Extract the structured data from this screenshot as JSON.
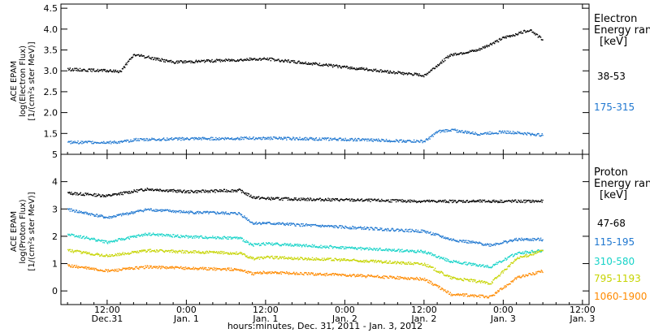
{
  "chart_data": [
    {
      "type": "scatter",
      "panel": "electron",
      "ylabel": [
        "ACE EPAM",
        "log(Electron Flux)",
        "[1/(cm²s ster MeV)]"
      ],
      "ylim": [
        1.0,
        4.6
      ],
      "yticks": [
        "1.5",
        "2.0",
        "2.5",
        "3.0",
        "3.5",
        "4.0",
        "4.5"
      ],
      "legend_title": [
        "Electron",
        "Energy ran",
        "[keV]"
      ],
      "legend_placement": "right",
      "x": [
        "Dec 31 06:00",
        "Dec 31 14:00",
        "Dec 31 16:00",
        "Dec 31 22:00",
        "Jan 1 12:00",
        "Jan 2 00:00",
        "Jan 2 12:00",
        "Jan 2 14:00",
        "Jan 2 16:00",
        "Jan 2 20:00",
        "Jan 3 00:00",
        "Jan 3 04:00",
        "Jan 3 06:00"
      ],
      "series": [
        {
          "name": "38-53",
          "color": "#000000",
          "values": [
            3.05,
            3.0,
            3.4,
            3.22,
            3.3,
            3.1,
            2.9,
            3.15,
            3.4,
            3.5,
            3.8,
            4.0,
            3.75
          ]
        },
        {
          "name": "175-315",
          "color": "#1f77d0",
          "values": [
            1.3,
            1.3,
            1.36,
            1.38,
            1.4,
            1.37,
            1.32,
            1.55,
            1.6,
            1.5,
            1.55,
            1.5,
            1.47
          ]
        }
      ]
    },
    {
      "type": "scatter",
      "panel": "proton",
      "ylabel": [
        "ACE EPAM",
        "log(Proton Flux)",
        "[1/(cm²s ster MeV)]"
      ],
      "ylim": [
        -0.5,
        5.0
      ],
      "yticks": [
        "0",
        "1",
        "2",
        "3",
        "4",
        "5"
      ],
      "legend_title": [
        "Proton",
        "Energy ran",
        "[keV]"
      ],
      "legend_placement": "right",
      "x": [
        "Dec 31 06:00",
        "Dec 31 12:00",
        "Dec 31 18:00",
        "Jan 1 00:00",
        "Jan 1 08:00",
        "Jan 1 10:00",
        "Jan 1 12:00",
        "Jan 2 00:00",
        "Jan 2 12:00",
        "Jan 2 16:00",
        "Jan 2 22:00",
        "Jan 3 02:00",
        "Jan 3 06:00"
      ],
      "series": [
        {
          "name": "47-68",
          "color": "#000000",
          "values": [
            3.6,
            3.5,
            3.75,
            3.65,
            3.7,
            3.45,
            3.4,
            3.35,
            3.3,
            3.3,
            3.3,
            3.3,
            3.3
          ]
        },
        {
          "name": "115-195",
          "color": "#1f77d0",
          "values": [
            3.0,
            2.7,
            3.0,
            2.9,
            2.85,
            2.5,
            2.5,
            2.35,
            2.2,
            1.9,
            1.7,
            1.9,
            1.9
          ]
        },
        {
          "name": "310-580",
          "color": "#16d3c8",
          "values": [
            2.1,
            1.8,
            2.1,
            2.0,
            1.95,
            1.7,
            1.75,
            1.6,
            1.45,
            1.1,
            0.9,
            1.4,
            1.5
          ]
        },
        {
          "name": "795-1193",
          "color": "#c6d400",
          "values": [
            1.5,
            1.3,
            1.5,
            1.45,
            1.4,
            1.2,
            1.25,
            1.15,
            1.0,
            0.5,
            0.3,
            1.2,
            1.5
          ]
        },
        {
          "name": "1060-1900",
          "color": "#ff8a00",
          "values": [
            0.95,
            0.75,
            0.9,
            0.85,
            0.8,
            0.65,
            0.7,
            0.6,
            0.45,
            -0.1,
            -0.2,
            0.5,
            0.75
          ]
        }
      ]
    }
  ],
  "xaxis": {
    "ticks": [
      {
        "time": "12:00",
        "date": "Dec.31"
      },
      {
        "time": "0:00",
        "date": "Jan. 1"
      },
      {
        "time": "12:00",
        "date": "Jan. 1"
      },
      {
        "time": "0:00",
        "date": "Jan. 2"
      },
      {
        "time": "12:00",
        "date": "Jan. 2"
      },
      {
        "time": "0:00",
        "date": "Jan. 3"
      },
      {
        "time": "12:00",
        "date": "Jan. 3"
      }
    ],
    "label": "hours:minutes, Dec. 31, 2011 - Jan.  3, 2012"
  }
}
